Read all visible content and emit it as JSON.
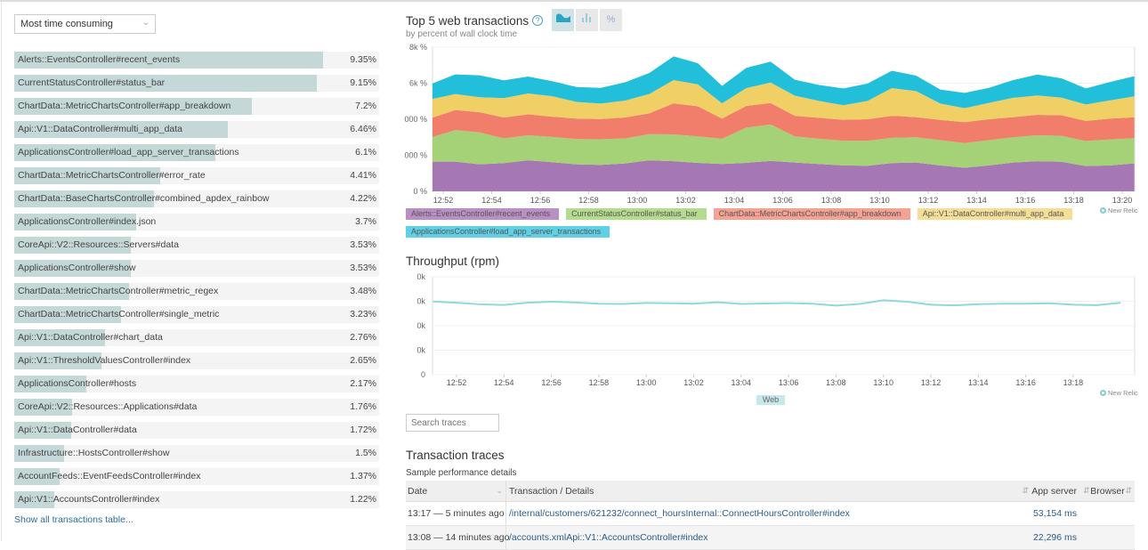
{
  "filter": {
    "selected": "Most time consuming"
  },
  "transactions": [
    {
      "name": "Alerts::EventsController#recent_events",
      "pct": "9.35%",
      "value": 9.35
    },
    {
      "name": "CurrentStatusController#status_bar",
      "pct": "9.15%",
      "value": 9.15
    },
    {
      "name": "ChartData::MetricChartsController#app_breakdown",
      "pct": "7.2%",
      "value": 7.2
    },
    {
      "name": "Api::V1::DataController#multi_app_data",
      "pct": "6.46%",
      "value": 6.46
    },
    {
      "name": "ApplicationsController#load_app_server_transactions",
      "pct": "6.1%",
      "value": 6.1
    },
    {
      "name": "ChartData::MetricChartsController#error_rate",
      "pct": "4.41%",
      "value": 4.41
    },
    {
      "name": "ChartData::BaseChartsController#combined_apdex_rainbow",
      "pct": "4.22%",
      "value": 4.22
    },
    {
      "name": "ApplicationsController#index.json",
      "pct": "3.7%",
      "value": 3.7
    },
    {
      "name": "CoreApi::V2::Resources::Servers#data",
      "pct": "3.53%",
      "value": 3.53
    },
    {
      "name": "ApplicationsController#show",
      "pct": "3.53%",
      "value": 3.53
    },
    {
      "name": "ChartData::MetricChartsController#metric_regex",
      "pct": "3.48%",
      "value": 3.48
    },
    {
      "name": "ChartData::MetricChartsController#single_metric",
      "pct": "3.23%",
      "value": 3.23
    },
    {
      "name": "Api::V1::DataController#chart_data",
      "pct": "2.76%",
      "value": 2.76
    },
    {
      "name": "Api::V1::ThresholdValuesController#index",
      "pct": "2.65%",
      "value": 2.65
    },
    {
      "name": "ApplicationsController#hosts",
      "pct": "2.17%",
      "value": 2.17
    },
    {
      "name": "CoreApi::V2::Resources::Applications#data",
      "pct": "1.76%",
      "value": 1.76
    },
    {
      "name": "Api::V1::DataController#data",
      "pct": "1.72%",
      "value": 1.72
    },
    {
      "name": "Infrastructure::HostsController#show",
      "pct": "1.5%",
      "value": 1.5
    },
    {
      "name": "AccountFeeds::EventFeedsController#index",
      "pct": "1.37%",
      "value": 1.37
    },
    {
      "name": "Api::V1::AccountsController#index",
      "pct": "1.22%",
      "value": 1.22
    }
  ],
  "show_all_link": "Show all transactions table...",
  "help_icon": "?",
  "chart_toggles": [
    {
      "icon": "area-chart-icon",
      "active": true
    },
    {
      "icon": "bar-chart-icon",
      "active": false
    },
    {
      "icon": "percent-icon",
      "label": "%",
      "active": false
    }
  ],
  "branding": "New Relic",
  "chart_data": [
    {
      "type": "area",
      "stacked": true,
      "title": "Top 5 web transactions",
      "subtitle": "by percent of wall clock time",
      "ylim": [
        0,
        8000
      ],
      "yticks": [
        "0 %",
        "000 %",
        "000 %",
        "6k %",
        "8k %"
      ],
      "xticks": [
        "12:52",
        "12:54",
        "12:56",
        "12:58",
        "13:00",
        "13:02",
        "13:04",
        "13:06",
        "13:08",
        "13:10",
        "13:12",
        "13:14",
        "13:16",
        "13:18",
        "13:20"
      ],
      "x": [
        "12:51:30",
        "12:52:30",
        "12:53:30",
        "12:54:30",
        "12:55:30",
        "12:56:30",
        "12:57:30",
        "12:58:30",
        "12:59:30",
        "13:00:30",
        "13:01:30",
        "13:02:30",
        "13:03:30",
        "13:04:30",
        "13:05:30",
        "13:06:30",
        "13:07:30",
        "13:08:30",
        "13:09:30",
        "13:10:30",
        "13:11:30",
        "13:12:30",
        "13:13:30",
        "13:14:30",
        "13:15:30",
        "13:16:30",
        "13:17:30",
        "13:18:30",
        "13:19:30",
        "13:20:30"
      ],
      "grid": true,
      "legend": "bottom",
      "series": [
        {
          "name": "Alerts::EventsController#recent_events",
          "color": "#a678b3",
          "legend_bg": "#b98fc4",
          "values": [
            1650,
            1650,
            1500,
            1570,
            1720,
            1620,
            1500,
            1470,
            1550,
            1720,
            1670,
            1580,
            1520,
            1580,
            1690,
            1600,
            1520,
            1440,
            1420,
            1570,
            1600,
            1440,
            1310,
            1440,
            1600,
            1670,
            1640,
            1400,
            1440,
            1550
          ]
        },
        {
          "name": "CurrentStatusController#status_bar",
          "color": "#a5d177",
          "legend_bg": "#b5dc8e",
          "values": [
            1370,
            1750,
            1770,
            1370,
            1390,
            1400,
            1400,
            1420,
            1390,
            1450,
            1490,
            1470,
            1400,
            1960,
            2020,
            1450,
            1400,
            1370,
            1390,
            1400,
            1400,
            1400,
            1370,
            1400,
            1400,
            1440,
            1440,
            1390,
            1440,
            1400
          ]
        },
        {
          "name": "ChartData::MetricChartsController#app_breakdown",
          "color": "#f07e6a",
          "legend_bg": "#f5a294",
          "values": [
            1070,
            1110,
            1120,
            1160,
            1160,
            1120,
            1140,
            1120,
            1160,
            1160,
            1720,
            1670,
            1120,
            1200,
            1190,
            1140,
            1160,
            1160,
            1190,
            1220,
            1120,
            1120,
            1160,
            1160,
            1120,
            1140,
            1140,
            1120,
            1160,
            1160
          ]
        },
        {
          "name": "Api::V1::DataController#multi_app_data",
          "color": "#f0cf65",
          "legend_bg": "#f5df98",
          "values": [
            1040,
            890,
            830,
            1070,
            1160,
            1140,
            920,
            860,
            940,
            1070,
            1290,
            1220,
            840,
            990,
            1140,
            1120,
            940,
            810,
            1020,
            1540,
            1440,
            910,
            780,
            910,
            1070,
            1070,
            980,
            910,
            1010,
            1160
          ]
        },
        {
          "name": "ApplicationsController#load_app_server_transactions",
          "color": "#22bfdb",
          "legend_bg": "#5fd0e6",
          "values": [
            860,
            1090,
            1220,
            990,
            940,
            830,
            830,
            870,
            1010,
            1170,
            1320,
            1170,
            970,
            1120,
            1160,
            880,
            880,
            930,
            960,
            960,
            860,
            780,
            840,
            830,
            980,
            1160,
            1070,
            890,
            1020,
            1120
          ]
        }
      ]
    },
    {
      "type": "line",
      "title": "Throughput (rpm)",
      "ylim": [
        0,
        80000
      ],
      "yticks": [
        "0",
        "0k",
        "0k",
        "0k",
        "0k"
      ],
      "xticks": [
        "12:52",
        "12:54",
        "12:56",
        "12:58",
        "13:00",
        "13:02",
        "13:04",
        "13:06",
        "13:08",
        "13:10",
        "13:12",
        "13:14",
        "13:16",
        "13:18"
      ],
      "x": [
        "12:51",
        "12:52",
        "12:53",
        "12:54",
        "12:55",
        "12:56",
        "12:57",
        "12:58",
        "12:59",
        "13:00",
        "13:01",
        "13:02",
        "13:03",
        "13:04",
        "13:05",
        "13:06",
        "13:07",
        "13:08",
        "13:09",
        "13:10",
        "13:11",
        "13:12",
        "13:13",
        "13:14",
        "13:15",
        "13:16",
        "13:17",
        "13:18",
        "13:19",
        "13:20"
      ],
      "grid": true,
      "legend": "bottom",
      "series": [
        {
          "name": "Web",
          "color": "#8fd9d8",
          "values": [
            59800,
            58800,
            57500,
            57000,
            58800,
            59600,
            59000,
            58000,
            57800,
            58600,
            58400,
            58000,
            59200,
            57800,
            58200,
            58500,
            58000,
            56500,
            57800,
            60800,
            59600,
            57200,
            56600,
            57600,
            58000,
            58000,
            58400,
            57200,
            56800,
            58800
          ]
        }
      ]
    }
  ],
  "search": {
    "placeholder": "Search traces"
  },
  "traces": {
    "title": "Transaction traces",
    "subtitle": "Sample performance details",
    "columns": [
      "Date",
      "Transaction / Details",
      "App server",
      "Browser"
    ],
    "rows": [
      {
        "date": "13:17 — 5 minutes ago",
        "transaction": "/internal/customers/621232/connect_hoursInternal::ConnectHoursController#index",
        "app_server": "53,154 ms",
        "browser": ""
      },
      {
        "date": "13:08 — 14 minutes ago",
        "transaction": "/accounts.xmlApi::V1::AccountsController#index",
        "app_server": "22,296 ms",
        "browser": ""
      }
    ]
  }
}
